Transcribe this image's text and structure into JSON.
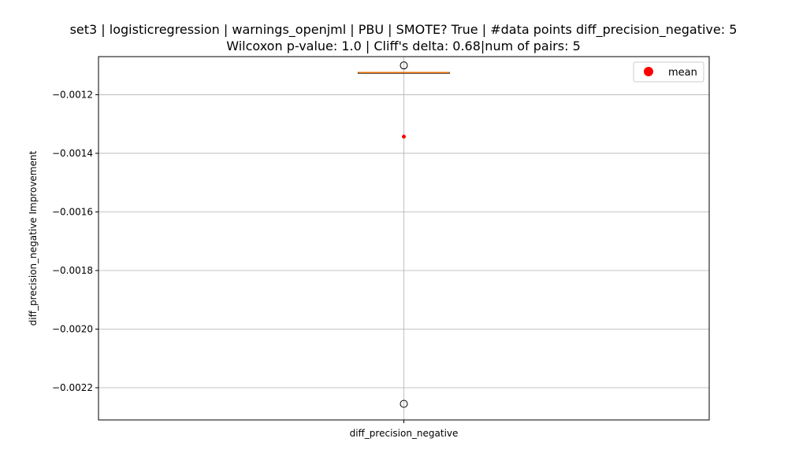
{
  "chart_data": {
    "type": "box",
    "title_line1": "set3 | logisticregression | warnings_openjml | PBU | SMOTE? True | #data points diff_precision_negative: 5",
    "title_line2": "Wilcoxon p-value: 1.0 | Cliff's delta: 0.68|num of pairs: 5",
    "xlabel": "",
    "ylabel": "diff_precision_negative Improvement",
    "categories": [
      "diff_precision_negative"
    ],
    "ylim": [
      -0.00231,
      -0.00107
    ],
    "yticks": [
      -0.0012,
      -0.0014,
      -0.0016,
      -0.0018,
      -0.002,
      -0.0022
    ],
    "ytick_labels": [
      "−0.0012",
      "−0.0014",
      "−0.0016",
      "−0.0018",
      "−0.0020",
      "−0.0022"
    ],
    "grid": true,
    "legend": {
      "position": "top-right",
      "entries": [
        {
          "label": "mean",
          "color": "#ff0000",
          "marker": "circle"
        }
      ]
    },
    "box": {
      "median": -0.001124,
      "q1": -0.001125,
      "q3": -0.001124,
      "whisker_low": -0.001125,
      "whisker_high": -0.001124,
      "mean": -0.001343,
      "outliers": [
        -0.0011,
        -0.002255
      ]
    },
    "colors": {
      "median": "#ff7f0e",
      "mean": "#ff0000",
      "grid": "#b0b0b0",
      "box": "#000000"
    }
  }
}
